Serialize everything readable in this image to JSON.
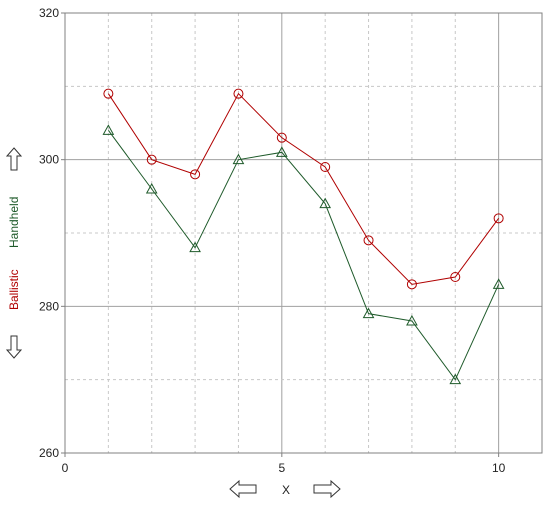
{
  "chart_data": {
    "type": "line",
    "x": [
      1,
      2,
      3,
      4,
      5,
      6,
      7,
      8,
      9,
      10
    ],
    "xlim": [
      0,
      11
    ],
    "ylim": [
      260,
      320
    ],
    "x_ticks": [
      "0",
      "5",
      "10"
    ],
    "y_ticks": [
      "260",
      "280",
      "300",
      "320"
    ],
    "xlabel": "X",
    "grid": true,
    "series": [
      {
        "name": "Ballistic",
        "marker": "circle",
        "color": "#b00000",
        "values": [
          309,
          300,
          298,
          309,
          303,
          299,
          289,
          283,
          284,
          292
        ]
      },
      {
        "name": "Handheld",
        "marker": "triangle",
        "color": "#1e5a2a",
        "values": [
          304,
          296,
          288,
          300,
          301,
          294,
          279,
          278,
          270,
          283
        ]
      }
    ]
  },
  "controls": {
    "y_up": "up-arrow",
    "y_down": "down-arrow",
    "x_left": "left-arrow",
    "x_right": "right-arrow"
  }
}
